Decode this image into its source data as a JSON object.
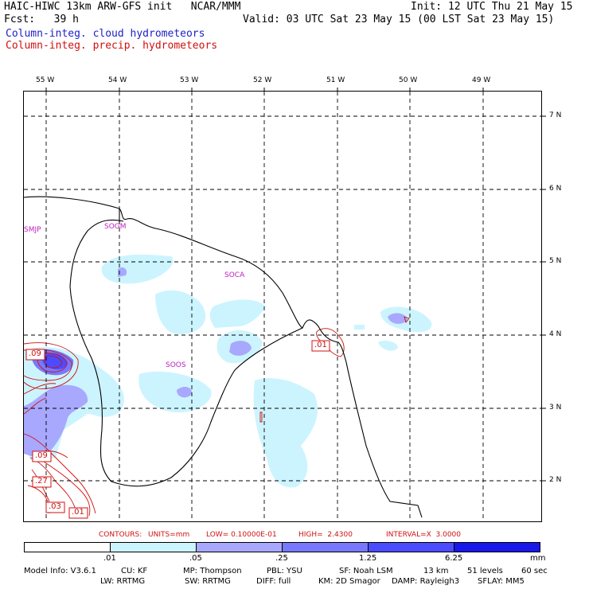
{
  "header": {
    "title": "HAIC-HIWC 13km ARW-GFS init   NCAR/MMM",
    "init": "Init: 12 UTC Thu 21 May 15",
    "fcst": "Fcst:   39 h",
    "valid": "Valid: 03 UTC Sat 23 May 15 (00 LST Sat 23 May 15)",
    "field1": "Column-integ. cloud hydrometeors",
    "field2": "Column-integ. precip. hydrometeors"
  },
  "colors": {
    "cloud_fill": [
      "#ffffff",
      "#ccf4ff",
      "#a8a8ff",
      "#7878ff",
      "#4c4cff",
      "#1818e8"
    ],
    "precip_contour": "#d01010",
    "station_label": "#c020c0"
  },
  "map": {
    "lon_labels": [
      "55 W",
      "54 W",
      "53 W",
      "52 W",
      "51 W",
      "50 W",
      "49 W"
    ],
    "lat_labels": [
      "7 N",
      "6 N",
      "5 N",
      "4 N",
      "3 N",
      "2 N"
    ],
    "stations": [
      "SMJP",
      "SOGM",
      "SOCA",
      "SOOS"
    ],
    "contour_labels": [
      ".09",
      ".01",
      ".09",
      ".27",
      ".03",
      ".01"
    ]
  },
  "contour_info": {
    "contours": "CONTOURS:",
    "units": "UNITS=mm",
    "low": "LOW= 0.10000E-01",
    "high": "HIGH=  2.4300",
    "interval": "INTERVAL=X  3.0000"
  },
  "colorbar": {
    "ticks": [
      ".01",
      ".05",
      ".25",
      "1.25",
      "6.25"
    ],
    "unit": "mm"
  },
  "footer": {
    "line1": [
      "Model Info: V3.6.1",
      "CU: KF",
      "MP: Thompson",
      "PBL: YSU",
      "SF: Noah LSM",
      "13 km",
      "51 levels",
      "60 sec"
    ],
    "line2": [
      "LW: RRTMG",
      "SW: RRTMG",
      "DIFF: full",
      "KM: 2D Smagor",
      "DAMP: Rayleigh3",
      "SFLAY: MM5"
    ]
  }
}
